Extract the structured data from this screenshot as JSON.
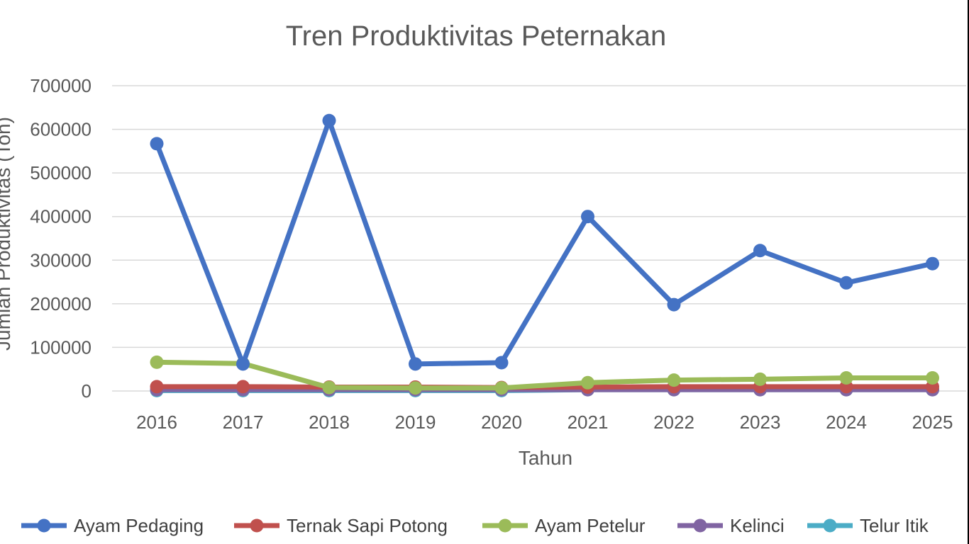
{
  "chart_data": {
    "type": "line",
    "title": "Tren Produktivitas Peternakan",
    "xlabel": "Tahun",
    "ylabel": "Jumlah Produktivitas (Ton)",
    "categories": [
      "2016",
      "2017",
      "2018",
      "2019",
      "2020",
      "2021",
      "2022",
      "2023",
      "2024",
      "2025"
    ],
    "ylim": [
      0,
      700000
    ],
    "yticks": [
      0,
      100000,
      200000,
      300000,
      400000,
      500000,
      600000,
      700000
    ],
    "ytick_labels": [
      "0",
      "100000",
      "200000",
      "300000",
      "400000",
      "500000",
      "600000",
      "700000"
    ],
    "grid": true,
    "legend_position": "bottom",
    "series": [
      {
        "name": "Ayam Pedaging",
        "color": "#4472C4",
        "values": [
          567000,
          62000,
          620000,
          62000,
          65000,
          400000,
          198000,
          322000,
          248000,
          292000
        ]
      },
      {
        "name": "Ternak Sapi Potong",
        "color": "#C0504D",
        "values": [
          10000,
          10000,
          9000,
          9000,
          8000,
          9000,
          10000,
          10000,
          10000,
          10000
        ]
      },
      {
        "name": "Ayam Petelur",
        "color": "#9BBB59",
        "values": [
          66000,
          63000,
          8000,
          7000,
          7000,
          19000,
          25000,
          27000,
          30000,
          30000
        ]
      },
      {
        "name": "Kelinci",
        "color": "#8064A2",
        "values": [
          3000,
          3000,
          3000,
          3000,
          3000,
          3000,
          3000,
          3000,
          3000,
          3000
        ]
      },
      {
        "name": "Telur Itik",
        "color": "#4BACC6",
        "values": [
          1000,
          1000,
          1000,
          1000,
          1000,
          3000,
          3000,
          3000,
          3000,
          3000
        ]
      }
    ]
  }
}
